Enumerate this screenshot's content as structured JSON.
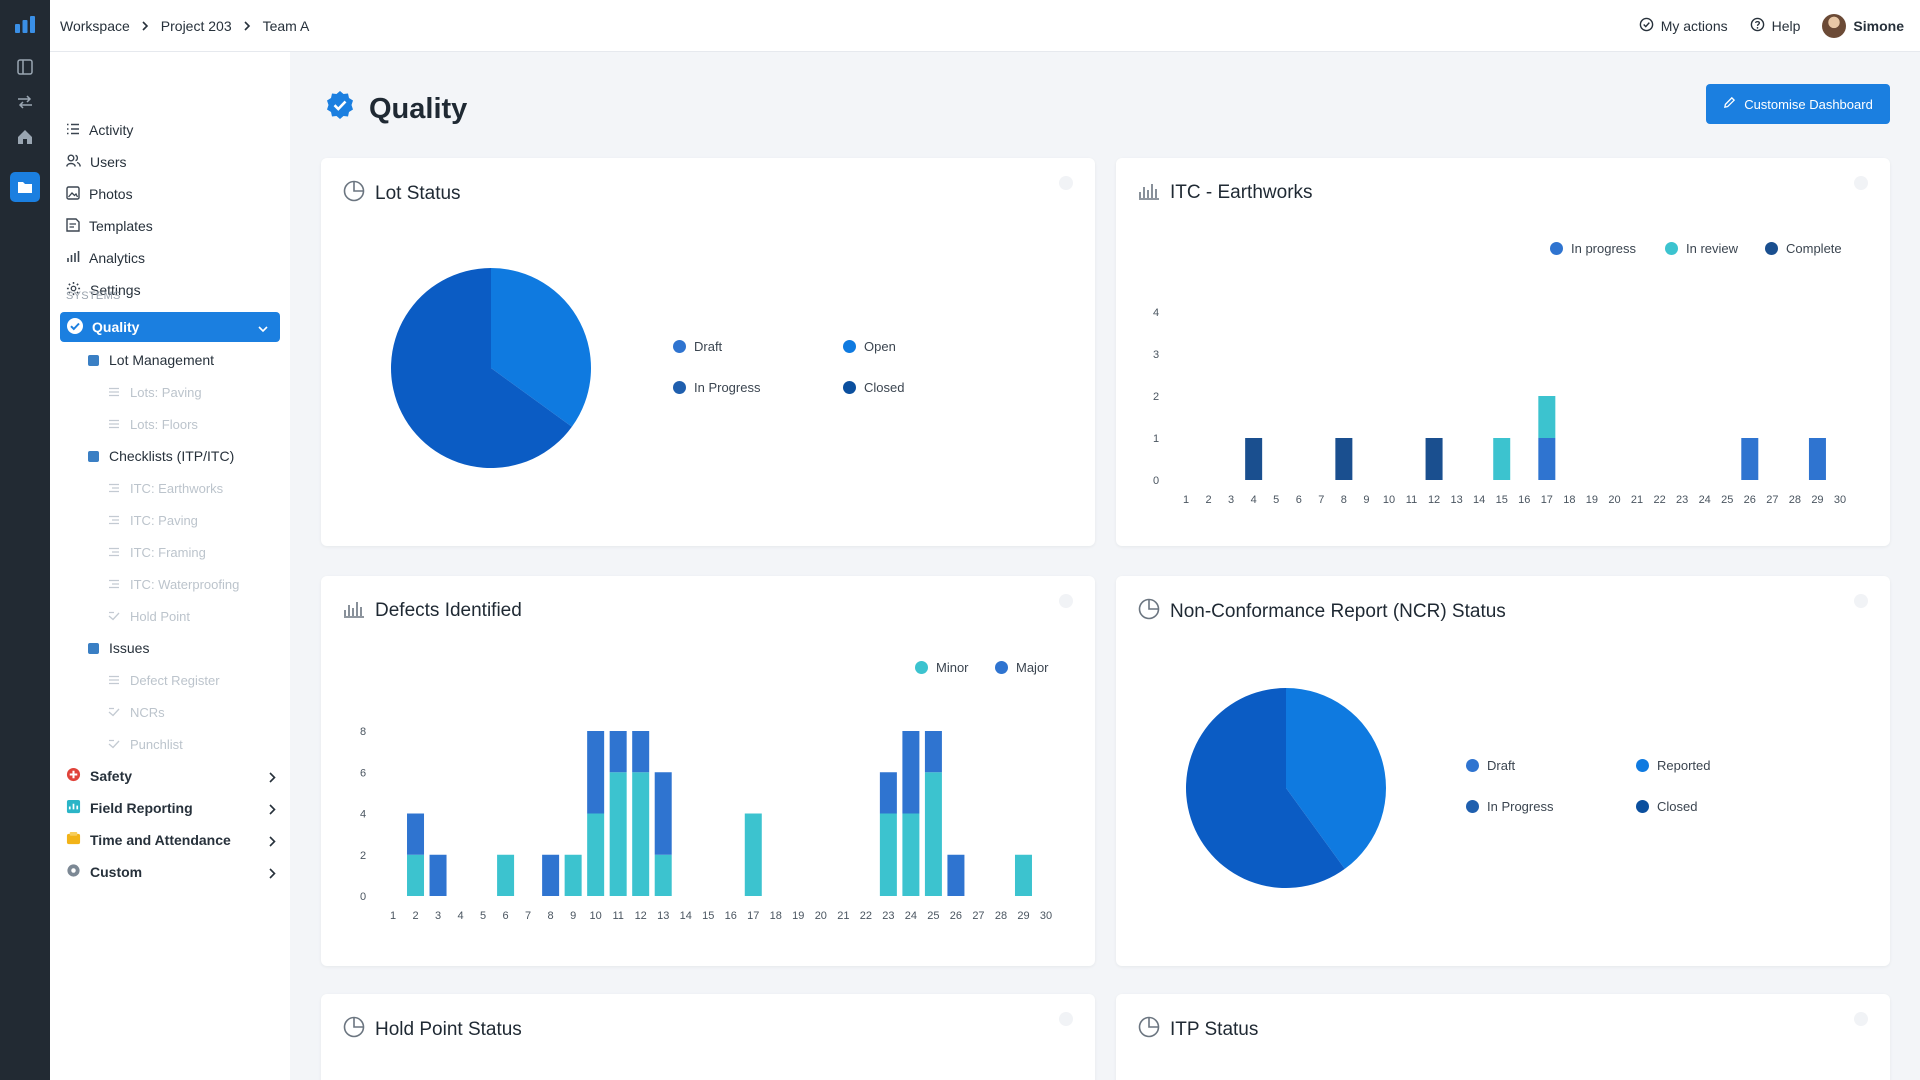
{
  "breadcrumbs": [
    "Workspace",
    "Project 203",
    "Team A"
  ],
  "top_actions": {
    "my_actions": "My actions",
    "help": "Help",
    "user": "Simone"
  },
  "sidebar": {
    "items": [
      {
        "label": "Activity",
        "icon": "list-icon"
      },
      {
        "label": "Users",
        "icon": "users-icon"
      },
      {
        "label": "Photos",
        "icon": "photo-icon"
      },
      {
        "label": "Templates",
        "icon": "template-icon"
      },
      {
        "label": "Analytics",
        "icon": "analytics-icon"
      },
      {
        "label": "Settings",
        "icon": "gear-icon"
      }
    ],
    "systems_label": "SYSTEMS",
    "quality": "Quality",
    "lot_management": "Lot Management",
    "lot_subs": [
      "Lots: Paving",
      "Lots: Floors"
    ],
    "checklists": "Checklists (ITP/ITC)",
    "checklist_subs": [
      "ITC: Earthworks",
      "ITC: Paving",
      "ITC: Framing",
      "ITC: Waterproofing",
      "Hold Point"
    ],
    "issues": "Issues",
    "issue_subs": [
      "Defect Register",
      "NCRs",
      "Punchlist"
    ],
    "groups": [
      {
        "label": "Safety",
        "color": "#e0433a"
      },
      {
        "label": "Field Reporting",
        "color": "#2bb5c7"
      },
      {
        "label": "Time and Attendance",
        "color": "#f2b318"
      },
      {
        "label": "Custom",
        "color": "#7c8894"
      }
    ]
  },
  "page": {
    "title": "Quality",
    "customise_label": "Customise Dashboard"
  },
  "colors": {
    "accent": "#1b7fe0",
    "in_progress": "#2f74d0",
    "in_review": "#3cc3cf",
    "complete": "#1a4f8f",
    "minor": "#3cc3cf",
    "major": "#2f74d0"
  },
  "cards": {
    "lot_status": {
      "title": "Lot Status",
      "legend": [
        "Draft",
        "Open",
        "In Progress",
        "Closed"
      ],
      "chart_data": {
        "type": "pie",
        "labels": [
          "Open",
          "Closed"
        ],
        "values": [
          35,
          65
        ],
        "colors": [
          "#0f7ae0",
          "#0b5cc4"
        ]
      }
    },
    "itc": {
      "title": "ITC - Earthworks",
      "legend": [
        "In progress",
        "In review",
        "Complete"
      ],
      "chart_data": {
        "type": "bar",
        "stacked": true,
        "ylim": [
          0,
          4
        ],
        "yticks": [
          0,
          1,
          2,
          3,
          4
        ],
        "categories": [
          "1",
          "2",
          "3",
          "4",
          "5",
          "6",
          "7",
          "8",
          "9",
          "10",
          "11",
          "12",
          "13",
          "14",
          "15",
          "16",
          "17",
          "18",
          "19",
          "20",
          "21",
          "22",
          "23",
          "24",
          "25",
          "26",
          "27",
          "28",
          "29",
          "30"
        ],
        "series": [
          {
            "name": "In progress",
            "color": "#2f74d0",
            "values": [
              0,
              0,
              0,
              0,
              0,
              0,
              0,
              0,
              0,
              0,
              0,
              0,
              0,
              0,
              0,
              0,
              1,
              0,
              0,
              0,
              0,
              0,
              0,
              0,
              0,
              1,
              0,
              0,
              1,
              0
            ]
          },
          {
            "name": "In review",
            "color": "#3cc3cf",
            "values": [
              0,
              0,
              0,
              0,
              0,
              0,
              0,
              0,
              0,
              0,
              0,
              0,
              0,
              0,
              1,
              0,
              1,
              0,
              0,
              0,
              0,
              0,
              0,
              0,
              0,
              0,
              0,
              0,
              0,
              0
            ]
          },
          {
            "name": "Complete",
            "color": "#1a4f8f",
            "values": [
              0,
              0,
              0,
              1,
              0,
              0,
              0,
              1,
              0,
              0,
              0,
              1,
              0,
              0,
              0,
              0,
              0,
              0,
              0,
              0,
              0,
              0,
              0,
              0,
              0,
              0,
              0,
              0,
              0,
              0
            ]
          }
        ]
      }
    },
    "defects": {
      "title": "Defects Identified",
      "legend": [
        "Minor",
        "Major"
      ],
      "chart_data": {
        "type": "bar",
        "stacked": true,
        "ylim": [
          0,
          8
        ],
        "yticks": [
          0,
          2,
          4,
          6,
          8
        ],
        "categories": [
          "1",
          "2",
          "3",
          "4",
          "5",
          "6",
          "7",
          "8",
          "9",
          "10",
          "11",
          "12",
          "13",
          "14",
          "15",
          "16",
          "17",
          "18",
          "19",
          "20",
          "21",
          "22",
          "23",
          "24",
          "25",
          "26",
          "27",
          "28",
          "29",
          "30"
        ],
        "series": [
          {
            "name": "Minor",
            "color": "#3cc3cf",
            "values": [
              0,
              2,
              0,
              0,
              0,
              2,
              0,
              0,
              2,
              4,
              6,
              6,
              2,
              0,
              0,
              0,
              4,
              0,
              0,
              0,
              0,
              0,
              4,
              4,
              6,
              0,
              0,
              0,
              2,
              0
            ]
          },
          {
            "name": "Major",
            "color": "#2f74d0",
            "values": [
              0,
              2,
              2,
              0,
              0,
              0,
              0,
              2,
              0,
              4,
              2,
              2,
              4,
              0,
              0,
              0,
              0,
              0,
              0,
              0,
              0,
              0,
              2,
              4,
              2,
              2,
              0,
              0,
              0,
              0
            ]
          }
        ]
      }
    },
    "ncr": {
      "title": "Non-Conformance Report (NCR) Status",
      "legend": [
        "Draft",
        "Reported",
        "In Progress",
        "Closed"
      ],
      "chart_data": {
        "type": "pie",
        "labels": [
          "Reported",
          "Closed"
        ],
        "values": [
          40,
          60
        ],
        "colors": [
          "#0f7ae0",
          "#0b5cc4"
        ]
      }
    },
    "hold_point": {
      "title": "Hold Point Status"
    },
    "itp": {
      "title": "ITP Status"
    }
  }
}
